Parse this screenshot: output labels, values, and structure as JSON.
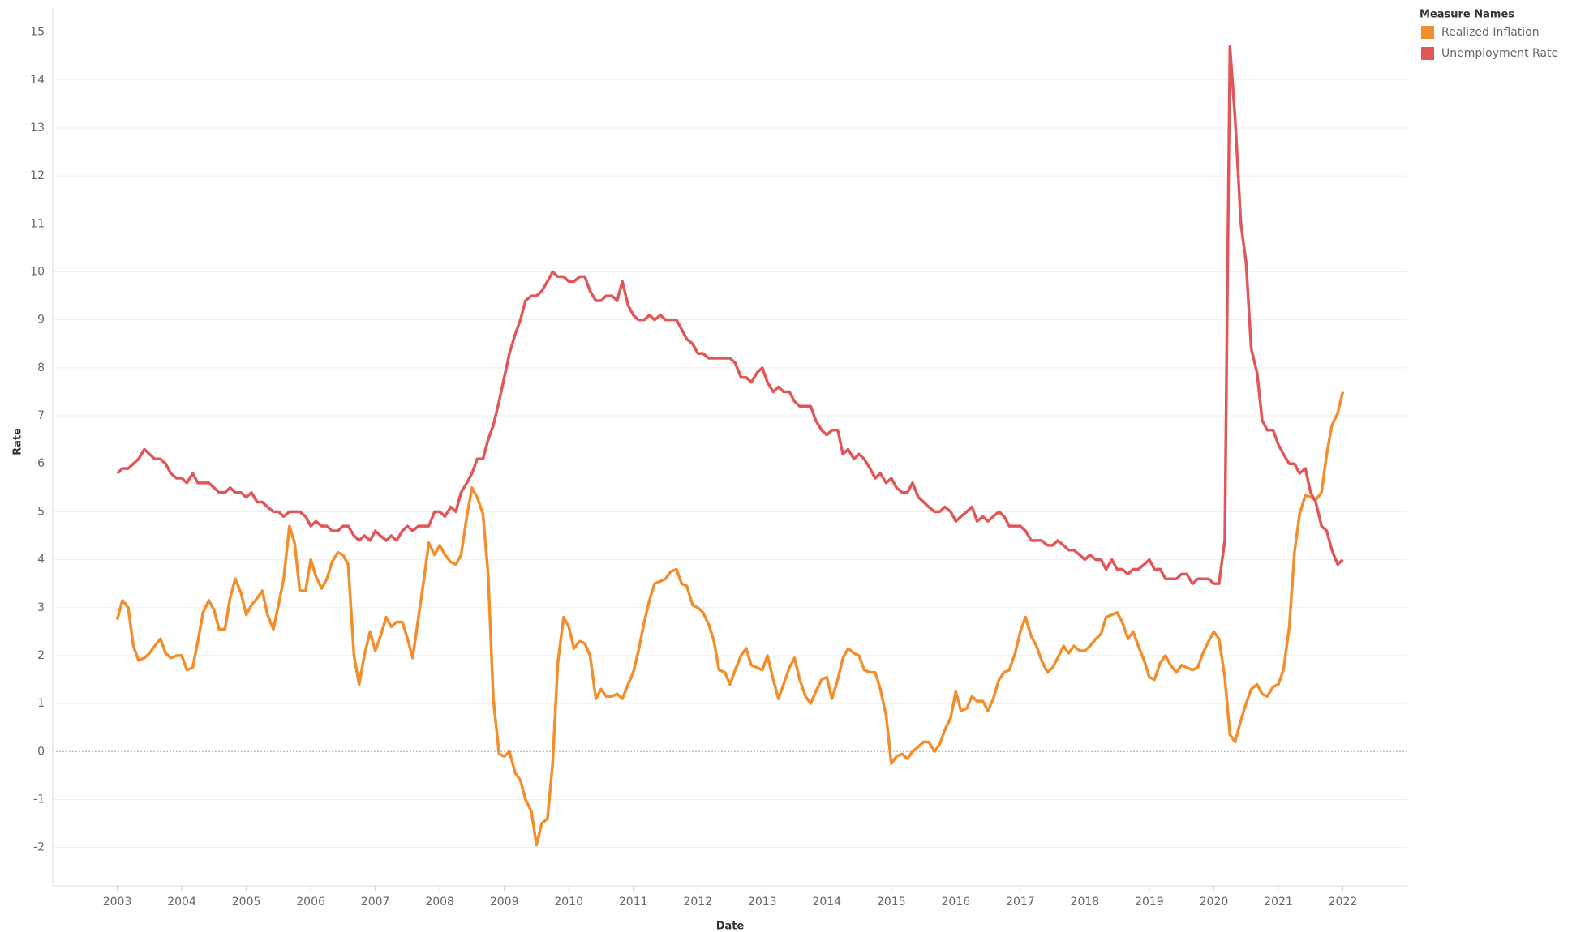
{
  "chart_data": {
    "type": "line",
    "x_label": "Date",
    "y_label": "Rate",
    "legend_title": "Measure Names",
    "legend": "top-right",
    "grid": true,
    "xlim": [
      2002,
      2023
    ],
    "xticks": [
      2003,
      2004,
      2005,
      2006,
      2007,
      2008,
      2009,
      2010,
      2011,
      2012,
      2013,
      2014,
      2015,
      2016,
      2017,
      2018,
      2019,
      2020,
      2021,
      2022
    ],
    "ylim": [
      -2.8,
      15.5
    ],
    "yticks": [
      -2,
      -1,
      0,
      1,
      2,
      3,
      4,
      5,
      6,
      7,
      8,
      9,
      10,
      11,
      12,
      13,
      14,
      15
    ],
    "x": [
      2003,
      2003.08,
      2003.17,
      2003.25,
      2003.33,
      2003.42,
      2003.5,
      2003.58,
      2003.67,
      2003.75,
      2003.83,
      2003.92,
      2004,
      2004.08,
      2004.17,
      2004.25,
      2004.33,
      2004.42,
      2004.5,
      2004.58,
      2004.67,
      2004.75,
      2004.83,
      2004.92,
      2005,
      2005.08,
      2005.17,
      2005.25,
      2005.33,
      2005.42,
      2005.5,
      2005.58,
      2005.67,
      2005.75,
      2005.83,
      2005.92,
      2006,
      2006.08,
      2006.17,
      2006.25,
      2006.33,
      2006.42,
      2006.5,
      2006.58,
      2006.67,
      2006.75,
      2006.83,
      2006.92,
      2007,
      2007.08,
      2007.17,
      2007.25,
      2007.33,
      2007.42,
      2007.5,
      2007.58,
      2007.67,
      2007.75,
      2007.83,
      2007.92,
      2008,
      2008.08,
      2008.17,
      2008.25,
      2008.33,
      2008.42,
      2008.5,
      2008.58,
      2008.67,
      2008.75,
      2008.83,
      2008.92,
      2009,
      2009.08,
      2009.17,
      2009.25,
      2009.33,
      2009.42,
      2009.5,
      2009.58,
      2009.67,
      2009.75,
      2009.83,
      2009.92,
      2010,
      2010.08,
      2010.17,
      2010.25,
      2010.33,
      2010.42,
      2010.5,
      2010.58,
      2010.67,
      2010.75,
      2010.83,
      2010.92,
      2011,
      2011.08,
      2011.17,
      2011.25,
      2011.33,
      2011.42,
      2011.5,
      2011.58,
      2011.67,
      2011.75,
      2011.83,
      2011.92,
      2012,
      2012.08,
      2012.17,
      2012.25,
      2012.33,
      2012.42,
      2012.5,
      2012.58,
      2012.67,
      2012.75,
      2012.83,
      2012.92,
      2013,
      2013.08,
      2013.17,
      2013.25,
      2013.33,
      2013.42,
      2013.5,
      2013.58,
      2013.67,
      2013.75,
      2013.83,
      2013.92,
      2014,
      2014.08,
      2014.17,
      2014.25,
      2014.33,
      2014.42,
      2014.5,
      2014.58,
      2014.67,
      2014.75,
      2014.83,
      2014.92,
      2015,
      2015.08,
      2015.17,
      2015.25,
      2015.33,
      2015.42,
      2015.5,
      2015.58,
      2015.67,
      2015.75,
      2015.83,
      2015.92,
      2016,
      2016.08,
      2016.17,
      2016.25,
      2016.33,
      2016.42,
      2016.5,
      2016.58,
      2016.67,
      2016.75,
      2016.83,
      2016.92,
      2017,
      2017.08,
      2017.17,
      2017.25,
      2017.33,
      2017.42,
      2017.5,
      2017.58,
      2017.67,
      2017.75,
      2017.83,
      2017.92,
      2018,
      2018.08,
      2018.17,
      2018.25,
      2018.33,
      2018.42,
      2018.5,
      2018.58,
      2018.67,
      2018.75,
      2018.83,
      2018.92,
      2019,
      2019.08,
      2019.17,
      2019.25,
      2019.33,
      2019.42,
      2019.5,
      2019.58,
      2019.67,
      2019.75,
      2019.83,
      2019.92,
      2020,
      2020.08,
      2020.17,
      2020.25,
      2020.33,
      2020.42,
      2020.5,
      2020.58,
      2020.67,
      2020.75,
      2020.83,
      2020.92,
      2021,
      2021.08,
      2021.17,
      2021.25,
      2021.33,
      2021.42,
      2021.5,
      2021.58,
      2021.67,
      2021.75,
      2021.83,
      2021.92,
      2022
    ],
    "series": [
      {
        "name": "Realized Inflation",
        "color": "#f28e2b",
        "values": [
          2.75,
          3.15,
          3.0,
          2.2,
          1.9,
          1.95,
          2.05,
          2.2,
          2.35,
          2.05,
          1.95,
          2.0,
          2.0,
          1.7,
          1.75,
          2.3,
          2.9,
          3.15,
          2.95,
          2.55,
          2.55,
          3.2,
          3.6,
          3.3,
          2.85,
          3.05,
          3.2,
          3.35,
          2.85,
          2.55,
          3.05,
          3.6,
          4.7,
          4.35,
          3.35,
          3.35,
          4.0,
          3.65,
          3.4,
          3.6,
          3.95,
          4.15,
          4.1,
          3.9,
          2.0,
          1.4,
          2.0,
          2.5,
          2.1,
          2.4,
          2.8,
          2.6,
          2.7,
          2.7,
          2.35,
          1.95,
          2.8,
          3.55,
          4.35,
          4.1,
          4.3,
          4.1,
          3.95,
          3.9,
          4.1,
          4.9,
          5.5,
          5.3,
          4.95,
          3.7,
          1.1,
          -0.05,
          -0.1,
          0.0,
          -0.45,
          -0.6,
          -1.0,
          -1.25,
          -1.95,
          -1.5,
          -1.4,
          -0.25,
          1.85,
          2.8,
          2.6,
          2.15,
          2.3,
          2.25,
          2.0,
          1.1,
          1.3,
          1.15,
          1.15,
          1.2,
          1.1,
          1.4,
          1.65,
          2.1,
          2.7,
          3.15,
          3.5,
          3.55,
          3.6,
          3.75,
          3.8,
          3.5,
          3.45,
          3.05,
          3.0,
          2.9,
          2.65,
          2.3,
          1.7,
          1.65,
          1.4,
          1.7,
          2.0,
          2.15,
          1.8,
          1.75,
          1.7,
          2.0,
          1.5,
          1.1,
          1.4,
          1.75,
          1.95,
          1.5,
          1.15,
          1.0,
          1.25,
          1.5,
          1.55,
          1.1,
          1.5,
          1.95,
          2.15,
          2.05,
          2.0,
          1.7,
          1.65,
          1.65,
          1.3,
          0.75,
          -0.25,
          -0.1,
          -0.05,
          -0.15,
          0.0,
          0.1,
          0.2,
          0.2,
          0.0,
          0.15,
          0.45,
          0.7,
          1.25,
          0.85,
          0.9,
          1.15,
          1.05,
          1.05,
          0.85,
          1.1,
          1.5,
          1.65,
          1.7,
          2.05,
          2.5,
          2.8,
          2.4,
          2.2,
          1.9,
          1.65,
          1.75,
          1.95,
          2.2,
          2.05,
          2.2,
          2.1,
          2.1,
          2.2,
          2.35,
          2.45,
          2.8,
          2.85,
          2.9,
          2.7,
          2.35,
          2.5,
          2.2,
          1.9,
          1.55,
          1.5,
          1.85,
          2.0,
          1.8,
          1.65,
          1.8,
          1.75,
          1.7,
          1.75,
          2.05,
          2.3,
          2.5,
          2.35,
          1.55,
          0.35,
          0.2,
          0.65,
          1.0,
          1.3,
          1.4,
          1.2,
          1.15,
          1.35,
          1.4,
          1.7,
          2.6,
          4.15,
          4.95,
          5.35,
          5.3,
          5.25,
          5.4,
          6.2,
          6.8,
          7.05,
          7.5
        ]
      },
      {
        "name": "Unemployment Rate",
        "color": "#e15759",
        "values": [
          5.8,
          5.9,
          5.9,
          6.0,
          6.1,
          6.3,
          6.2,
          6.1,
          6.1,
          6.0,
          5.8,
          5.7,
          5.7,
          5.6,
          5.8,
          5.6,
          5.6,
          5.6,
          5.5,
          5.4,
          5.4,
          5.5,
          5.4,
          5.4,
          5.3,
          5.4,
          5.2,
          5.2,
          5.1,
          5.0,
          5.0,
          4.9,
          5.0,
          5.0,
          5.0,
          4.9,
          4.7,
          4.8,
          4.7,
          4.7,
          4.6,
          4.6,
          4.7,
          4.7,
          4.5,
          4.4,
          4.5,
          4.4,
          4.6,
          4.5,
          4.4,
          4.5,
          4.4,
          4.6,
          4.7,
          4.6,
          4.7,
          4.7,
          4.7,
          5.0,
          5.0,
          4.9,
          5.1,
          5.0,
          5.4,
          5.6,
          5.8,
          6.1,
          6.1,
          6.5,
          6.8,
          7.3,
          7.8,
          8.3,
          8.7,
          9.0,
          9.4,
          9.5,
          9.5,
          9.6,
          9.8,
          10.0,
          9.9,
          9.9,
          9.8,
          9.8,
          9.9,
          9.9,
          9.6,
          9.4,
          9.4,
          9.5,
          9.5,
          9.4,
          9.8,
          9.3,
          9.1,
          9.0,
          9.0,
          9.1,
          9.0,
          9.1,
          9.0,
          9.0,
          9.0,
          8.8,
          8.6,
          8.5,
          8.3,
          8.3,
          8.2,
          8.2,
          8.2,
          8.2,
          8.2,
          8.1,
          7.8,
          7.8,
          7.7,
          7.9,
          8.0,
          7.7,
          7.5,
          7.6,
          7.5,
          7.5,
          7.3,
          7.2,
          7.2,
          7.2,
          6.9,
          6.7,
          6.6,
          6.7,
          6.7,
          6.2,
          6.3,
          6.1,
          6.2,
          6.1,
          5.9,
          5.7,
          5.8,
          5.6,
          5.7,
          5.5,
          5.4,
          5.4,
          5.6,
          5.3,
          5.2,
          5.1,
          5.0,
          5.0,
          5.1,
          5.0,
          4.8,
          4.9,
          5.0,
          5.1,
          4.8,
          4.9,
          4.8,
          4.9,
          5.0,
          4.9,
          4.7,
          4.7,
          4.7,
          4.6,
          4.4,
          4.4,
          4.4,
          4.3,
          4.3,
          4.4,
          4.3,
          4.2,
          4.2,
          4.1,
          4.0,
          4.1,
          4.0,
          4.0,
          3.8,
          4.0,
          3.8,
          3.8,
          3.7,
          3.8,
          3.8,
          3.9,
          4.0,
          3.8,
          3.8,
          3.6,
          3.6,
          3.6,
          3.7,
          3.7,
          3.5,
          3.6,
          3.6,
          3.6,
          3.5,
          3.5,
          4.4,
          14.7,
          13.2,
          11.0,
          10.2,
          8.4,
          7.9,
          6.9,
          6.7,
          6.7,
          6.4,
          6.2,
          6.0,
          6.0,
          5.8,
          5.9,
          5.4,
          5.2,
          4.7,
          4.6,
          4.2,
          3.9,
          4.0
        ]
      }
    ]
  }
}
